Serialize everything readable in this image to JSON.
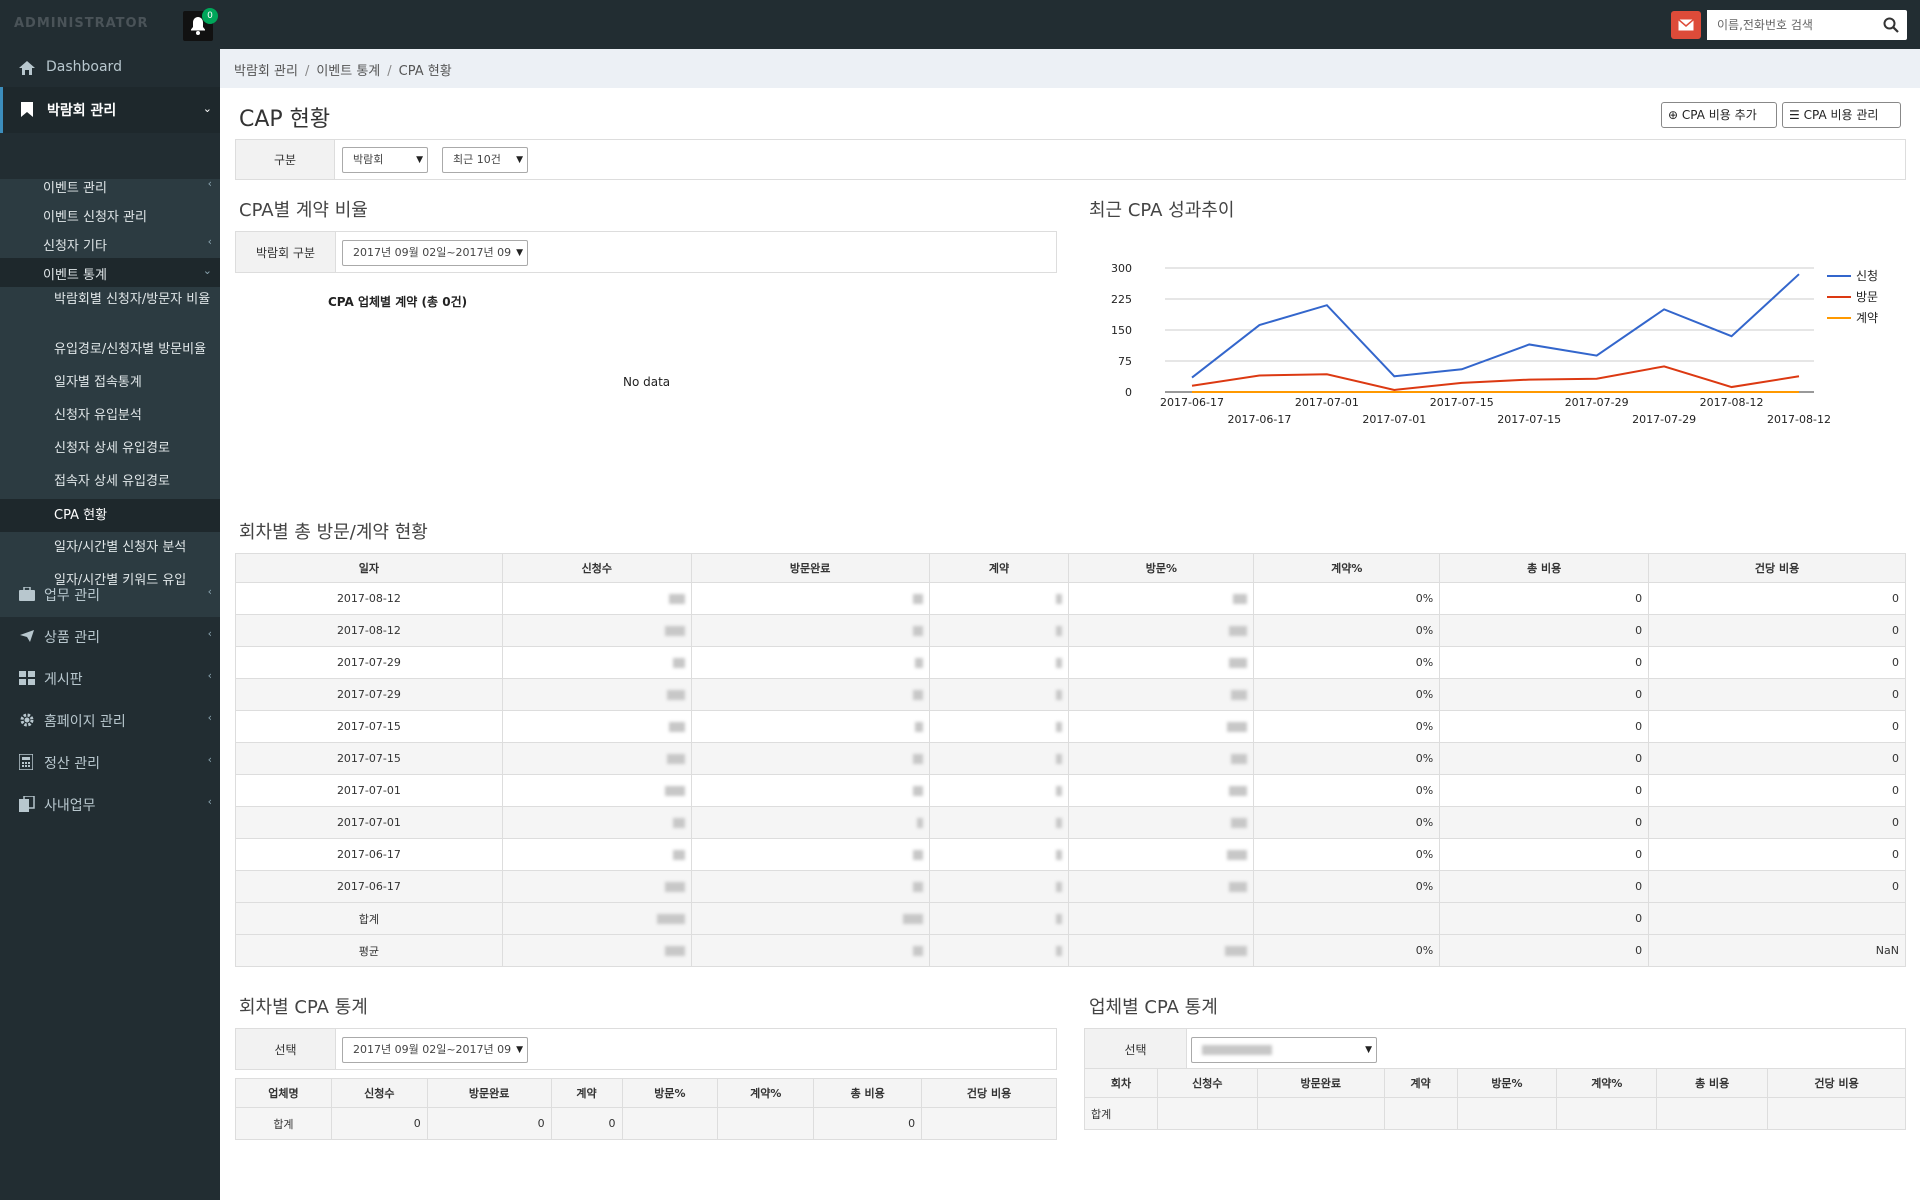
{
  "header": {
    "logo": "ADMINISTRATOR",
    "notification_count": "0",
    "search_placeholder": "이름,전화번호 검색"
  },
  "sidebar": {
    "dashboard": "Dashboard",
    "expo": "박람회 관리",
    "sub": {
      "event_manage": "이벤트 관리",
      "applicant_manage": "이벤트 신청자 관리",
      "applicant_other": "신청자 기타",
      "event_stats": "이벤트 통계"
    },
    "stats_items": [
      "박람회별 신청자/방문자 비율",
      "유입경로/신청자별 방문비율",
      "일자별 접속통계",
      "신청자 유입분석",
      "신청자 상세 유입경로",
      "접속자 상세 유입경로",
      "CPA 현황",
      "일자/시간별 신청자 분석",
      "일자/시간별 키워드 유입"
    ],
    "business": "업무 관리",
    "products": "상품 관리",
    "board": "게시판",
    "homepage": "홈페이지 관리",
    "settlement": "정산 관리",
    "internal": "사내업무"
  },
  "breadcrumb": [
    "박람회 관리",
    "이벤트 통계",
    "CPA 현황"
  ],
  "page": {
    "title": "CAP 현황",
    "btn_add": "CPA 비용 추가",
    "btn_manage": "CPA 비용 관리",
    "filter_label": "구분",
    "filter_select1": "박람회",
    "filter_select2": "최근 10건"
  },
  "ratio_section": {
    "title": "CPA별 계약 비율",
    "filter_label": "박람회 구분",
    "filter_select": "2017년 09월 02일~2017년 09",
    "chart_title": "CPA 업체별 계약 (총 0건)",
    "no_data": "No data"
  },
  "trend_section": {
    "title": "최근 CPA 성과추이"
  },
  "chart_data": {
    "type": "line",
    "x": [
      "2017-06-17",
      "2017-06-17",
      "2017-07-01",
      "2017-07-01",
      "2017-07-15",
      "2017-07-15",
      "2017-07-29",
      "2017-07-29",
      "2017-08-12",
      "2017-08-12"
    ],
    "x_tick_labels_top": [
      "2017-06-17",
      "2017-07-01",
      "2017-07-15",
      "2017-07-29",
      "2017-08-12"
    ],
    "x_tick_labels_bottom": [
      "2017-06-17",
      "2017-07-01",
      "2017-07-15",
      "2017-07-29",
      "2017-08-12"
    ],
    "yticks": [
      "300",
      "225",
      "150",
      "75",
      "0"
    ],
    "ylim": [
      0,
      300
    ],
    "grid": true,
    "legend_position": "right",
    "series": [
      {
        "name": "신청",
        "color": "#3366cc",
        "values": [
          35,
          162,
          210,
          38,
          55,
          115,
          88,
          200,
          135,
          285
        ]
      },
      {
        "name": "방문",
        "color": "#dc3912",
        "values": [
          15,
          40,
          43,
          5,
          22,
          30,
          32,
          62,
          12,
          38
        ]
      },
      {
        "name": "계약",
        "color": "#ff9900",
        "values": [
          0,
          0,
          0,
          0,
          0,
          0,
          0,
          0,
          0,
          0
        ]
      }
    ]
  },
  "round_table": {
    "title": "회차별 총 방문/계약 현황",
    "headers": [
      "일자",
      "신청수",
      "방문완료",
      "계약",
      "방문%",
      "계약%",
      "총 비용",
      "건당 비용"
    ],
    "rows": [
      {
        "date": "2017-08-12",
        "contract_pct": "0%",
        "total": "0",
        "per": "0"
      },
      {
        "date": "2017-08-12",
        "contract_pct": "0%",
        "total": "0",
        "per": "0"
      },
      {
        "date": "2017-07-29",
        "contract_pct": "0%",
        "total": "0",
        "per": "0"
      },
      {
        "date": "2017-07-29",
        "contract_pct": "0%",
        "total": "0",
        "per": "0"
      },
      {
        "date": "2017-07-15",
        "contract_pct": "0%",
        "total": "0",
        "per": "0"
      },
      {
        "date": "2017-07-15",
        "contract_pct": "0%",
        "total": "0",
        "per": "0"
      },
      {
        "date": "2017-07-01",
        "contract_pct": "0%",
        "total": "0",
        "per": "0"
      },
      {
        "date": "2017-07-01",
        "contract_pct": "0%",
        "total": "0",
        "per": "0"
      },
      {
        "date": "2017-06-17",
        "contract_pct": "0%",
        "total": "0",
        "per": "0"
      },
      {
        "date": "2017-06-17",
        "contract_pct": "0%",
        "total": "0",
        "per": "0"
      }
    ],
    "sum_label": "합계",
    "sum_total": "0",
    "avg_label": "평균",
    "avg_contract_pct": "0%",
    "avg_total": "0",
    "avg_per": "NaN"
  },
  "round_cpa": {
    "title": "회차별 CPA 통계",
    "filter_label": "선택",
    "filter_select": "2017년 09월 02일~2017년 09",
    "headers": [
      "업체명",
      "신청수",
      "방문완료",
      "계약",
      "방문%",
      "계약%",
      "총 비용",
      "건당 비용"
    ],
    "sum_row": [
      "합계",
      "0",
      "0",
      "0",
      "",
      "",
      "0",
      ""
    ]
  },
  "vendor_cpa": {
    "title": "업체별 CPA 통계",
    "filter_label": "선택",
    "headers": [
      "회차",
      "신청수",
      "방문완료",
      "계약",
      "방문%",
      "계약%",
      "총 비용",
      "건당 비용"
    ],
    "sum_label": "합계"
  }
}
